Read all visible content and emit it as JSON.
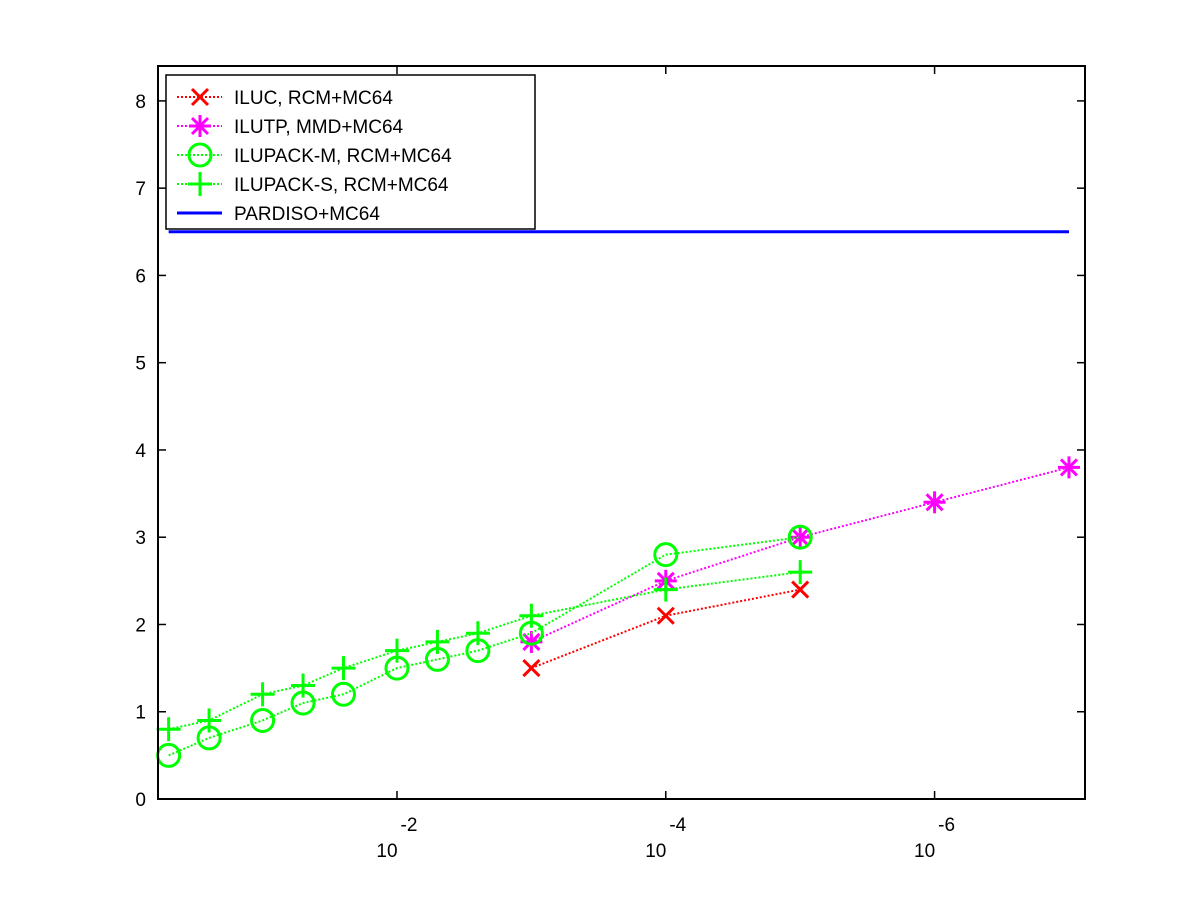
{
  "chart_data": {
    "type": "line",
    "x_scale": "log",
    "x_reversed": true,
    "xlim": [
      0.6,
      7.6e-08
    ],
    "ylim": [
      0,
      8.4
    ],
    "xticks": [
      {
        "value": 0.01,
        "label": "10",
        "exponent": "-2"
      },
      {
        "value": 0.0001,
        "label": "10",
        "exponent": "-4"
      },
      {
        "value": 1e-06,
        "label": "10",
        "exponent": "-6"
      }
    ],
    "yticks": [
      0,
      1,
      2,
      3,
      4,
      5,
      6,
      7,
      8
    ],
    "legend": "upper left",
    "series": [
      {
        "name": "ILUC, RCM+MC64",
        "color": "#ff0000",
        "marker": "x",
        "linestyle": "dotted",
        "x": [
          0.001,
          0.0001,
          1e-05
        ],
        "values": [
          1.5,
          2.1,
          2.4
        ]
      },
      {
        "name": "ILUTP, MMD+MC64",
        "color": "#ff00ff",
        "marker": "*",
        "linestyle": "dotted",
        "x": [
          0.001,
          0.0001,
          1e-05,
          1e-06,
          1e-07
        ],
        "values": [
          1.8,
          2.5,
          3.0,
          3.4,
          3.8
        ]
      },
      {
        "name": "ILUPACK-M, RCM+MC64",
        "color": "#00ff00",
        "marker": "o",
        "linestyle": "dotted",
        "x": [
          0.5,
          0.25,
          0.1,
          0.05,
          0.025,
          0.01,
          0.005,
          0.0025,
          0.001,
          0.0001,
          1e-05
        ],
        "values": [
          0.5,
          0.7,
          0.9,
          1.1,
          1.2,
          1.5,
          1.6,
          1.7,
          1.9,
          2.8,
          3.0
        ]
      },
      {
        "name": "ILUPACK-S, RCM+MC64",
        "color": "#00ff00",
        "marker": "+",
        "linestyle": "dotted",
        "x": [
          0.5,
          0.25,
          0.1,
          0.05,
          0.025,
          0.01,
          0.005,
          0.0025,
          0.001,
          0.0001,
          1e-05
        ],
        "values": [
          0.8,
          0.9,
          1.2,
          1.3,
          1.5,
          1.7,
          1.8,
          1.9,
          2.1,
          2.4,
          2.6
        ]
      },
      {
        "name": "PARDISO+MC64",
        "color": "#0000ff",
        "marker": "none",
        "linestyle": "solid",
        "x": [
          0.5,
          1e-07
        ],
        "values": [
          6.5,
          6.5
        ]
      }
    ]
  }
}
